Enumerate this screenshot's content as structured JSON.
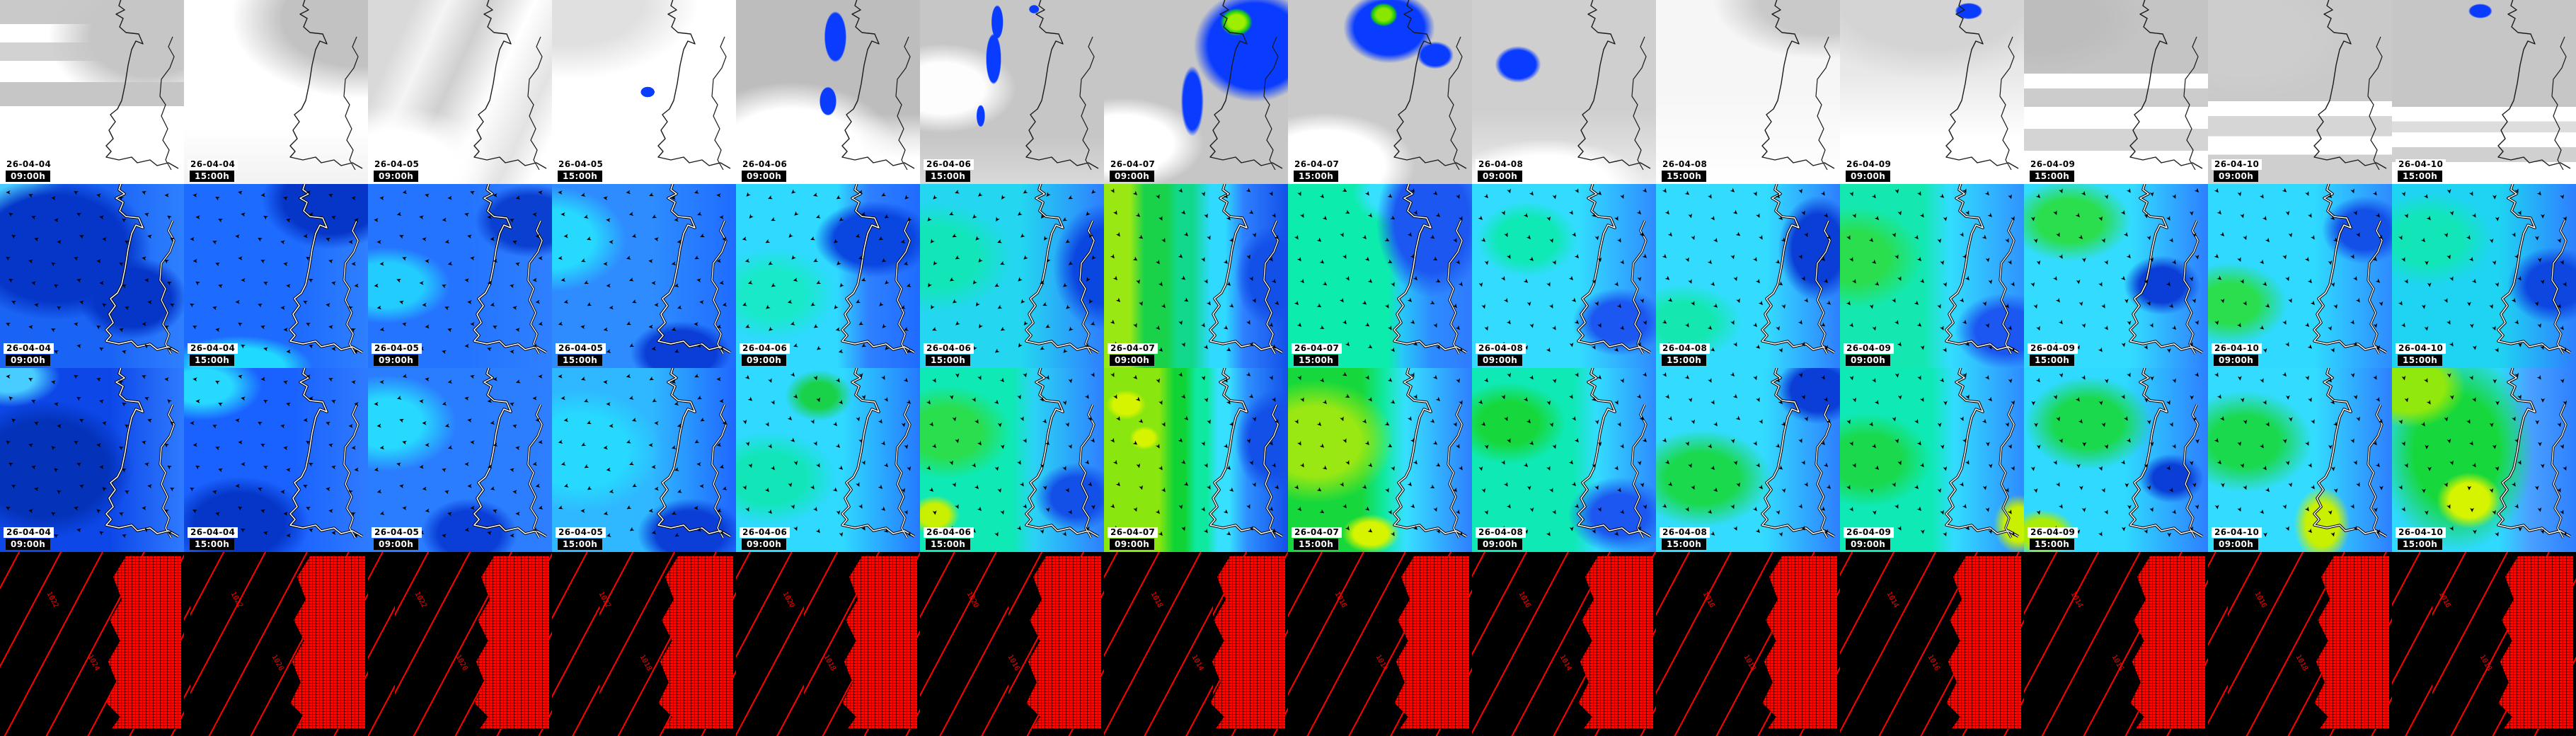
{
  "page": {
    "background": "#000000"
  },
  "columns": [
    {
      "date": "26-04-04",
      "time": "09:00h"
    },
    {
      "date": "26-04-04",
      "time": "15:00h"
    },
    {
      "date": "26-04-05",
      "time": "09:00h"
    },
    {
      "date": "26-04-05",
      "time": "15:00h"
    },
    {
      "date": "26-04-06",
      "time": "09:00h"
    },
    {
      "date": "26-04-06",
      "time": "15:00h"
    },
    {
      "date": "26-04-07",
      "time": "09:00h"
    },
    {
      "date": "26-04-07",
      "time": "15:00h"
    },
    {
      "date": "26-04-08",
      "time": "09:00h"
    },
    {
      "date": "26-04-08",
      "time": "15:00h"
    },
    {
      "date": "26-04-09",
      "time": "09:00h"
    },
    {
      "date": "26-04-09",
      "time": "15:00h"
    },
    {
      "date": "26-04-10",
      "time": "09:00h"
    },
    {
      "date": "26-04-10",
      "time": "15:00h"
    }
  ],
  "rows": [
    {
      "kind": "satellite",
      "name": "satellite-cloud-precipitation-row"
    },
    {
      "kind": "wind_a",
      "name": "wind-field-row-1"
    },
    {
      "kind": "wind_b",
      "name": "wind-field-row-2"
    },
    {
      "kind": "pressure",
      "name": "pressure-isobar-row"
    }
  ],
  "pressure": {
    "labels": [
      [
        "1022",
        "1024"
      ],
      [
        "1022",
        "1020"
      ],
      [
        "1022",
        "1020"
      ],
      [
        "1022",
        "1018"
      ],
      [
        "1020",
        "1018"
      ],
      [
        "1020",
        "1016"
      ],
      [
        "1018",
        "1014"
      ],
      [
        "1016",
        "1014"
      ],
      [
        "1016",
        "1014"
      ],
      [
        "1016",
        "1018"
      ],
      [
        "1014",
        "1016"
      ],
      [
        "1014",
        "1016"
      ],
      [
        "1016",
        "1018"
      ],
      [
        "1016",
        "1018"
      ]
    ]
  },
  "colors": {
    "precip_blue": "#0a3cff",
    "precip_green": "#18c818",
    "precip_bright_green": "#9dee00",
    "wind_dark_blue": "#0536c8",
    "wind_blue": "#1a64f5",
    "wind_light_blue": "#2f80ff",
    "wind_cyan": "#2fd9ff",
    "wind_turquoise": "#0fe9b5",
    "wind_green": "#19d24a",
    "wind_yellow_green": "#9ae813",
    "wind_yellow": "#d6f400",
    "isobar_red": "#ff0000",
    "background_black": "#000000",
    "cloud_white": "#ffffff",
    "cloud_gray": "#c6c6c6",
    "date_box_bg": "#ffffff",
    "date_box_text": "#000000",
    "time_box_bg": "#000000",
    "time_box_text": "#ffffff"
  }
}
